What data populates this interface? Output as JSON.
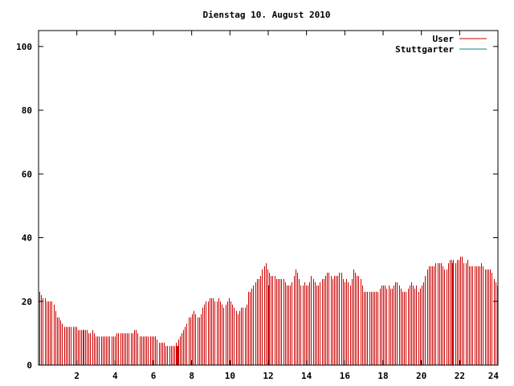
{
  "chart_data": {
    "type": "bar",
    "title": "Dienstag 10. August 2010",
    "xlabel": "",
    "ylabel": "",
    "xlim": [
      0,
      24
    ],
    "ylim": [
      0,
      105
    ],
    "x_ticks": [
      2,
      4,
      6,
      8,
      10,
      12,
      14,
      16,
      18,
      20,
      22,
      24
    ],
    "y_ticks": [
      0,
      20,
      40,
      60,
      80,
      100
    ],
    "legend_position": "top-right",
    "grid": false,
    "series": [
      {
        "name": "User",
        "color": "#cc0000",
        "values": [
          23,
          22,
          21,
          21,
          20,
          20,
          20,
          20,
          19,
          17,
          15,
          15,
          14,
          13,
          12,
          12,
          12,
          12,
          12,
          12,
          12,
          12,
          11,
          11,
          11,
          11,
          11,
          11,
          10,
          10,
          11,
          10,
          9,
          9,
          9,
          9,
          9,
          9,
          9,
          9,
          9,
          9,
          9,
          9,
          10,
          10,
          10,
          10,
          10,
          10,
          10,
          10,
          10,
          10,
          11,
          11,
          10,
          9,
          9,
          9,
          9,
          9,
          9,
          9,
          9,
          9,
          9,
          8,
          7,
          7,
          7,
          7,
          6,
          6,
          6,
          6,
          6,
          6,
          7,
          8,
          9,
          10,
          11,
          12,
          13,
          15,
          15,
          16,
          17,
          16,
          15,
          15,
          16,
          18,
          19,
          20,
          20,
          21,
          21,
          21,
          20,
          20,
          21,
          20,
          19,
          18,
          19,
          20,
          21,
          20,
          19,
          18,
          17,
          16,
          17,
          18,
          18,
          18,
          19,
          23,
          23,
          24,
          25,
          26,
          27,
          27,
          28,
          30,
          31,
          32,
          30,
          29,
          28,
          28,
          28,
          27,
          27,
          27,
          27,
          27,
          26,
          25,
          25,
          25,
          26,
          28,
          30,
          29,
          27,
          25,
          25,
          26,
          25,
          25,
          26,
          28,
          27,
          26,
          25,
          25,
          26,
          27,
          27,
          28,
          29,
          29,
          28,
          27,
          28,
          28,
          28,
          29,
          29,
          27,
          26,
          27,
          26,
          25,
          27,
          30,
          29,
          28,
          28,
          27,
          25,
          23,
          23,
          23,
          23,
          23,
          23,
          23,
          23,
          23,
          24,
          25,
          25,
          25,
          24,
          25,
          24,
          24,
          25,
          26,
          26,
          25,
          24,
          23,
          23,
          23,
          24,
          25,
          26,
          25,
          24,
          25,
          23,
          24,
          25,
          26,
          28,
          30,
          31,
          31,
          31,
          31,
          32,
          32,
          32,
          32,
          31,
          30,
          30,
          32,
          33,
          33,
          33,
          32,
          33,
          33,
          34,
          34,
          32,
          32,
          33,
          31,
          31,
          31,
          31,
          31,
          31,
          31,
          32,
          31,
          30,
          30,
          30,
          30,
          29,
          27,
          26,
          25
        ],
        "highlight_values": [
          {
            "x": 2.35,
            "y": 11
          },
          {
            "x": 7.25,
            "y": 6
          },
          {
            "x": 12.0,
            "y": 25
          },
          {
            "x": 21.65,
            "y": 32
          }
        ]
      },
      {
        "name": "Stuttgarter",
        "color": "#008b8b",
        "values": []
      }
    ]
  }
}
